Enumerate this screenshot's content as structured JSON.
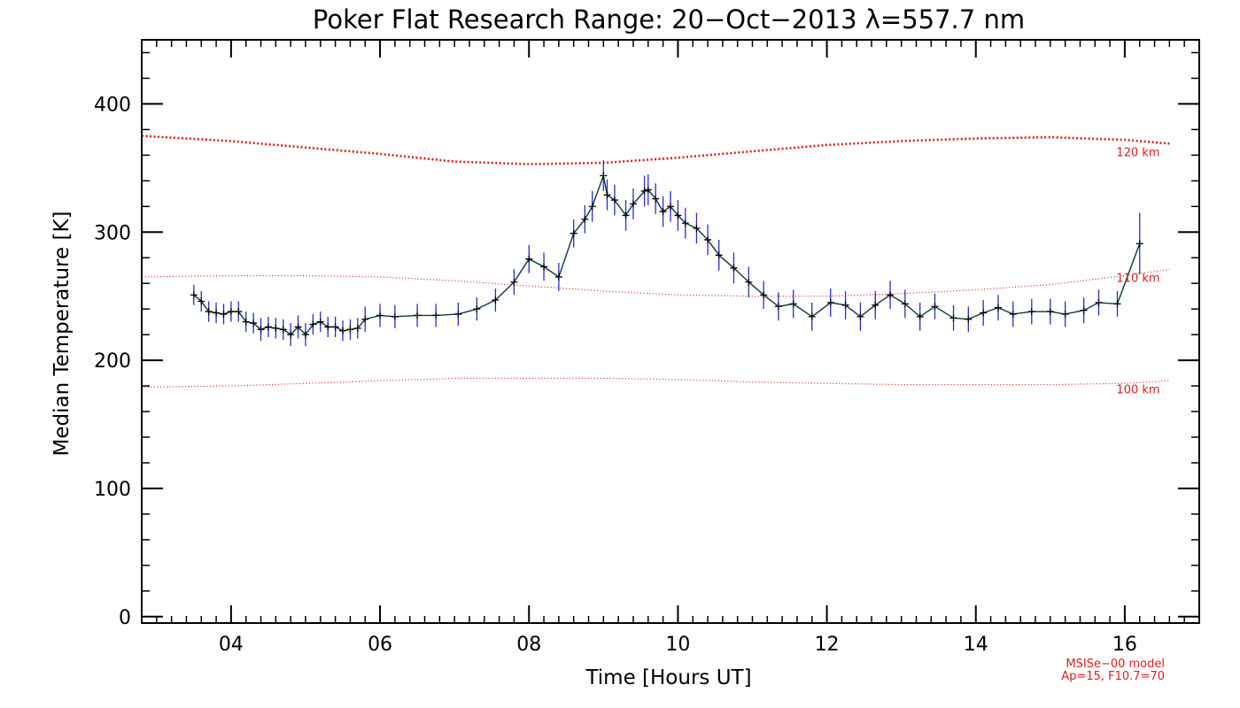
{
  "chart_data": {
    "type": "line",
    "title": "Poker Flat Research Range: 20−Oct−2013 λ=557.7 nm",
    "xlabel": "Time [Hours UT]",
    "ylabel": "Median Temperature [K]",
    "xlim": [
      2.8,
      17.0
    ],
    "ylim": [
      -5,
      450
    ],
    "x_ticks": [
      4,
      6,
      8,
      10,
      12,
      14,
      16
    ],
    "x_tick_labels": [
      "04",
      "06",
      "08",
      "10",
      "12",
      "14",
      "16"
    ],
    "x_minor_step": 0.2,
    "y_ticks": [
      0,
      100,
      200,
      300,
      400
    ],
    "y_tick_labels": [
      "0",
      "100",
      "200",
      "300",
      "400"
    ],
    "y_minor_step": 20,
    "grid": false,
    "series": [
      {
        "name": "Median Temperature",
        "line_color": "#0a3a3a",
        "error_color": "#2b2bd6",
        "x": [
          3.5,
          3.6,
          3.7,
          3.8,
          3.9,
          4.0,
          4.1,
          4.2,
          4.3,
          4.4,
          4.5,
          4.6,
          4.7,
          4.8,
          4.9,
          5.0,
          5.1,
          5.2,
          5.3,
          5.4,
          5.5,
          5.6,
          5.7,
          5.8,
          6.0,
          6.2,
          6.5,
          6.75,
          7.05,
          7.3,
          7.55,
          7.8,
          8.0,
          8.2,
          8.4,
          8.6,
          8.75,
          8.85,
          9.0,
          9.05,
          9.15,
          9.3,
          9.4,
          9.55,
          9.6,
          9.7,
          9.8,
          9.9,
          10.0,
          10.1,
          10.25,
          10.4,
          10.55,
          10.75,
          10.95,
          11.15,
          11.35,
          11.55,
          11.8,
          12.05,
          12.25,
          12.45,
          12.65,
          12.85,
          13.05,
          13.25,
          13.45,
          13.7,
          13.9,
          14.1,
          14.3,
          14.5,
          14.75,
          15.0,
          15.2,
          15.45,
          15.65,
          15.9,
          16.2
        ],
        "y": [
          251,
          246,
          238,
          237,
          236,
          238,
          238,
          230,
          229,
          224,
          226,
          225,
          224,
          220,
          226,
          220,
          228,
          230,
          226,
          226,
          223,
          224,
          225,
          232,
          235,
          234,
          235,
          235,
          236,
          240,
          247,
          261,
          279,
          273,
          265,
          299,
          310,
          320,
          344,
          329,
          325,
          313,
          322,
          332,
          333,
          326,
          316,
          320,
          313,
          307,
          303,
          294,
          282,
          272,
          261,
          251,
          242,
          244,
          234,
          245,
          243,
          234,
          243,
          251,
          244,
          234,
          242,
          233,
          232,
          237,
          241,
          236,
          238,
          238,
          236,
          239,
          245,
          244,
          291
        ],
        "err": [
          8,
          8,
          8,
          8,
          8,
          8,
          8,
          8,
          8,
          9,
          8,
          8,
          8,
          9,
          9,
          9,
          8,
          8,
          8,
          8,
          8,
          8,
          8,
          10,
          9,
          9,
          9,
          9,
          9,
          9,
          9,
          10,
          11,
          11,
          11,
          11,
          11,
          12,
          12,
          12,
          12,
          12,
          12,
          12,
          12,
          12,
          12,
          12,
          12,
          12,
          12,
          12,
          12,
          12,
          12,
          11,
          11,
          11,
          11,
          11,
          11,
          11,
          11,
          11,
          11,
          11,
          10,
          10,
          10,
          10,
          10,
          10,
          10,
          10,
          10,
          10,
          10,
          10,
          24
        ]
      }
    ],
    "model_curves": [
      {
        "name": "120 km",
        "color": "#e21c1c",
        "x": [
          2.8,
          4.0,
          5.0,
          6.0,
          7.0,
          8.0,
          9.0,
          10.0,
          11.0,
          12.0,
          13.0,
          14.0,
          15.0,
          16.0,
          16.6
        ],
        "y": [
          375,
          371,
          366,
          361,
          355,
          353,
          354,
          358,
          363,
          368,
          371,
          373,
          374,
          372,
          369
        ]
      },
      {
        "name": "110 km",
        "color": "#e21c1c",
        "x": [
          2.8,
          4.0,
          5.0,
          6.0,
          7.0,
          8.0,
          9.0,
          10.0,
          11.0,
          12.0,
          13.0,
          14.0,
          15.0,
          16.0,
          16.6
        ],
        "y": [
          265,
          266,
          266,
          265,
          262,
          258,
          254,
          251,
          250,
          250,
          252,
          255,
          259,
          266,
          271
        ]
      },
      {
        "name": "100 km",
        "color": "#e21c1c",
        "x": [
          2.8,
          4.0,
          5.0,
          6.0,
          7.0,
          8.0,
          9.0,
          10.0,
          11.0,
          12.0,
          13.0,
          14.0,
          15.0,
          16.0,
          16.6
        ],
        "y": [
          179,
          180,
          182,
          184,
          186,
          186,
          186,
          185,
          183,
          182,
          181,
          181,
          181,
          182,
          184
        ]
      }
    ],
    "annotations": [
      "MSISe−00 model",
      "Ap=15, F10.7=70"
    ]
  }
}
